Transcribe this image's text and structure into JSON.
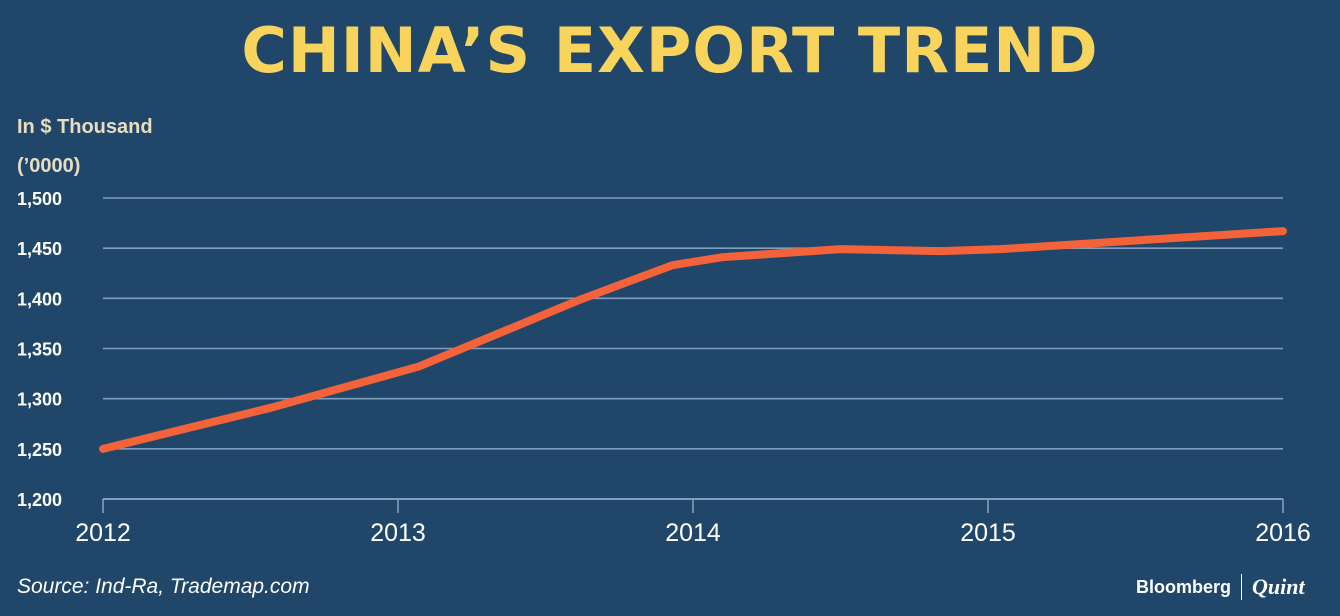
{
  "chart_data": {
    "type": "line",
    "title": "CHINA’S EXPORT TREND",
    "ylabel": "In $ Thousand",
    "ylabel_unit": "(’0000)",
    "xlim": [
      2012,
      2016
    ],
    "ylim": [
      1200,
      1500
    ],
    "x_ticks": [
      "2012",
      "2013",
      "2014",
      "2015",
      "2016"
    ],
    "y_ticks": [
      "1,200",
      "1,250",
      "1,300",
      "1,350",
      "1,400",
      "1,450",
      "1,500"
    ],
    "grid": true,
    "line_color": "#f4623a",
    "series": [
      {
        "x": [
          2012.0,
          2012.57,
          2013.07,
          2013.62,
          2013.93,
          2014.1,
          2014.5,
          2014.84,
          2015.04,
          2016.0
        ],
        "y": [
          1250,
          1291,
          1332,
          1399,
          1433,
          1441,
          1449,
          1447,
          1449,
          1467
        ]
      }
    ],
    "source": "Source: Ind-Ra, Trademap.com"
  },
  "brand": {
    "left": "Bloomberg",
    "right": "Quint"
  },
  "colors": {
    "background": "#20476a",
    "title": "#f8d45c",
    "grid": "#7f9fbf"
  }
}
